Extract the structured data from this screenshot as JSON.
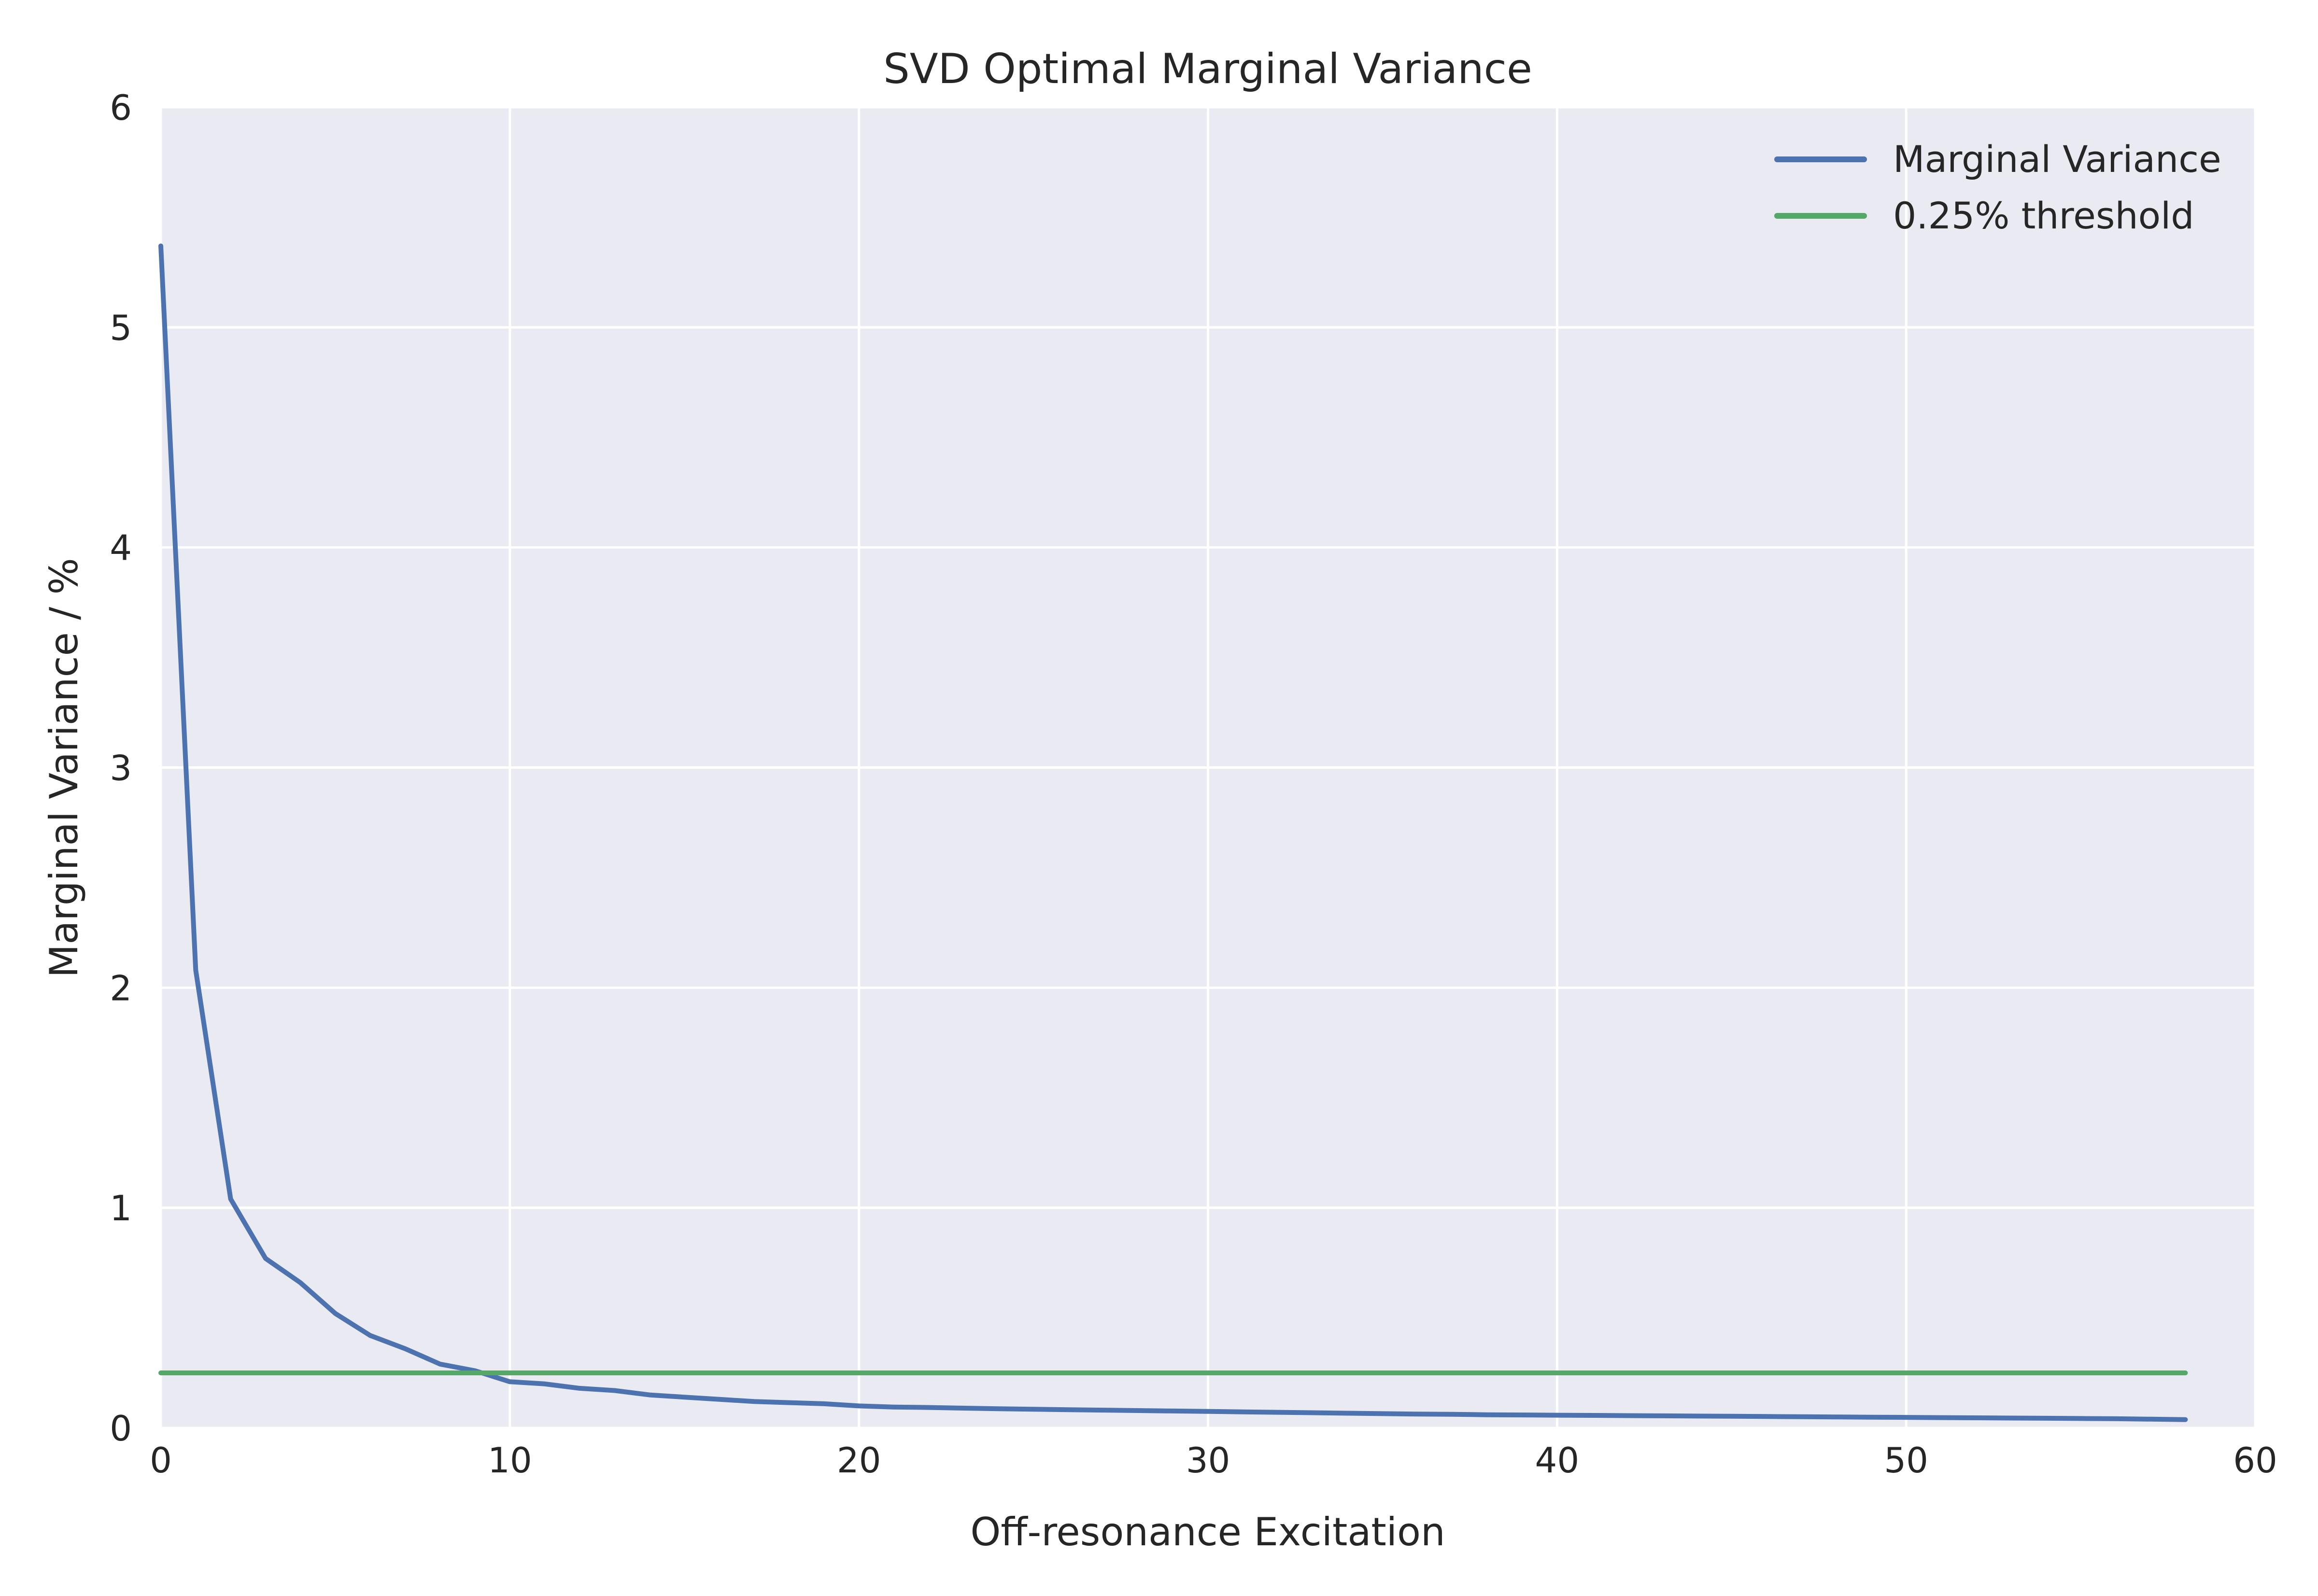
{
  "chart_data": {
    "type": "line",
    "title": "SVD Optimal Marginal Variance",
    "xlabel": "Off-resonance Excitation",
    "ylabel": "Marginal Variance / %",
    "xlim": [
      0,
      60
    ],
    "ylim": [
      0,
      6
    ],
    "xticks": [
      0,
      10,
      20,
      30,
      40,
      50,
      60
    ],
    "yticks": [
      0,
      1,
      2,
      3,
      4,
      5,
      6
    ],
    "grid": true,
    "legend_position": "top-right",
    "series": [
      {
        "name": "Marginal Variance",
        "color": "#4c72b0",
        "x": [
          0,
          1,
          2,
          3,
          4,
          5,
          6,
          7,
          8,
          9,
          10,
          11,
          12,
          13,
          14,
          15,
          16,
          17,
          18,
          19,
          20,
          21,
          22,
          23,
          24,
          25,
          26,
          27,
          28,
          29,
          30,
          31,
          32,
          33,
          34,
          35,
          36,
          37,
          38,
          39,
          40,
          41,
          42,
          43,
          44,
          45,
          46,
          47,
          48,
          49,
          50,
          51,
          52,
          53,
          54,
          55,
          56,
          57,
          58
        ],
        "y": [
          5.37,
          2.08,
          1.04,
          0.77,
          0.66,
          0.52,
          0.42,
          0.36,
          0.29,
          0.26,
          0.21,
          0.2,
          0.18,
          0.17,
          0.15,
          0.14,
          0.13,
          0.12,
          0.115,
          0.11,
          0.1,
          0.095,
          0.093,
          0.09,
          0.087,
          0.085,
          0.083,
          0.081,
          0.079,
          0.077,
          0.075,
          0.073,
          0.071,
          0.069,
          0.067,
          0.065,
          0.063,
          0.062,
          0.06,
          0.059,
          0.058,
          0.057,
          0.056,
          0.055,
          0.054,
          0.053,
          0.052,
          0.051,
          0.05,
          0.049,
          0.048,
          0.047,
          0.046,
          0.045,
          0.044,
          0.043,
          0.042,
          0.04,
          0.038
        ]
      },
      {
        "name": "0.25% threshold",
        "color": "#55a868",
        "x": [
          0,
          58
        ],
        "y": [
          0.25,
          0.25
        ]
      }
    ]
  },
  "colors": {
    "plot_background": "#eaeaf2",
    "grid": "#ffffff"
  }
}
